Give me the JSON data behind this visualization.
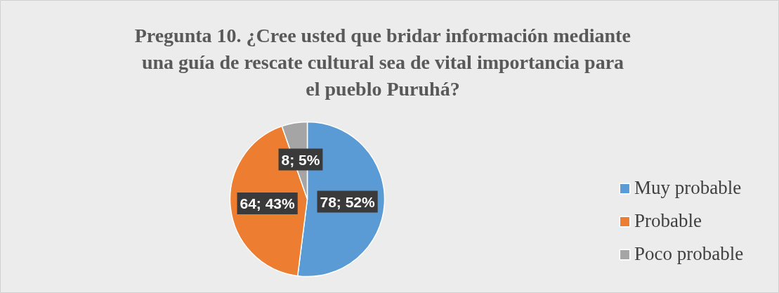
{
  "chart_data": {
    "type": "pie",
    "title": "Pregunta 10. ¿Cree usted que bridar información mediante una guía de rescate cultural sea de vital importancia para el pueblo Puruhá?",
    "categories": [
      "Muy probable",
      "Probable",
      "Poco probable"
    ],
    "values": [
      78,
      64,
      8
    ],
    "colors": [
      "#5b9bd5",
      "#ed7d31",
      "#a5a5a5"
    ],
    "value_labels": [
      "78; 52%",
      "64; 43%",
      "8; 5%"
    ],
    "legend": "right"
  }
}
